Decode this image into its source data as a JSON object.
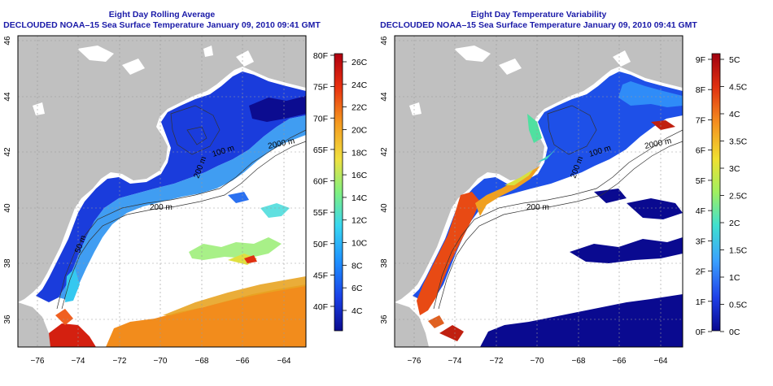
{
  "left_panel": {
    "title": "Eight Day Rolling Average",
    "subtitle": "DECLOUDED NOAA–15 Sea Surface Temperature January 09, 2010 09:41 GMT",
    "colorbar": {
      "fahrenheit_labels": [
        "80F",
        "75F",
        "70F",
        "65F",
        "60F",
        "55F",
        "50F",
        "45F",
        "40F"
      ],
      "celsius_labels": [
        "26C",
        "24C",
        "22C",
        "20C",
        "18C",
        "16C",
        "14C",
        "12C",
        "10C",
        "8C",
        "6C",
        "4C"
      ]
    },
    "contour_labels": [
      "2000 m",
      "100 m",
      "200 m",
      "200 m",
      "50 m"
    ]
  },
  "right_panel": {
    "title": "Eight Day Temperature Variability",
    "subtitle": "DECLOUDED NOAA–15 Sea Surface Temperature January 09, 2010 09:41 GMT",
    "colorbar": {
      "fahrenheit_labels": [
        "9F",
        "8F",
        "7F",
        "6F",
        "5F",
        "4F",
        "3F",
        "2F",
        "1F",
        "0F"
      ],
      "celsius_labels": [
        "5C",
        "4.5C",
        "4C",
        "3.5C",
        "3C",
        "2.5C",
        "2C",
        "1.5C",
        "1C",
        "0.5C",
        "0C"
      ]
    },
    "contour_labels": [
      "2000 m",
      "100 m",
      "200 m",
      "200 m"
    ]
  },
  "axes": {
    "longitude_labels": [
      "−76",
      "−74",
      "−72",
      "−70",
      "−68",
      "−66",
      "−64"
    ],
    "latitude_labels": [
      "46",
      "44",
      "42",
      "40",
      "38",
      "36"
    ]
  },
  "chart_data": {
    "type": "heatmap",
    "xlim": [
      -77,
      -63
    ],
    "ylim": [
      35,
      46
    ],
    "grid": true,
    "colors": {
      "land": "#c0c0c0",
      "left_scale": [
        "#0b0b8f",
        "#1a40e6",
        "#1e90ff",
        "#39d7f0",
        "#80f080",
        "#f0e040",
        "#f59a20",
        "#e83010",
        "#b00010"
      ],
      "right_scale": [
        "#080890",
        "#1f40e8",
        "#3aa0ff",
        "#40e0d0",
        "#a0f060",
        "#f0e030",
        "#f59020",
        "#e03010",
        "#a00010"
      ]
    }
  }
}
